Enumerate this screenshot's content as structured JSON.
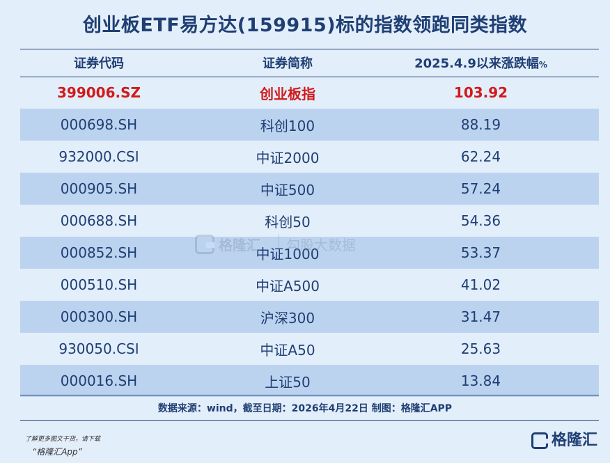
{
  "title": "创业板ETF易方达(159915)标的指数领跑同类指数",
  "headers": {
    "code": "证券代码",
    "name": "证券简称",
    "change": "2025.4.9以来涨跌幅",
    "change_unit": "%"
  },
  "rows": [
    {
      "code": "399006.SZ",
      "name": "创业板指",
      "value": "103.92"
    },
    {
      "code": "000698.SH",
      "name": "科创100",
      "value": "88.19"
    },
    {
      "code": "932000.CSI",
      "name": "中证2000",
      "value": "62.24"
    },
    {
      "code": "000905.SH",
      "name": "中证500",
      "value": "57.24"
    },
    {
      "code": "000688.SH",
      "name": "科创50",
      "value": "54.36"
    },
    {
      "code": "000852.SH",
      "name": "中证1000",
      "value": "53.37"
    },
    {
      "code": "000510.SH",
      "name": "中证A500",
      "value": "41.02"
    },
    {
      "code": "000300.SH",
      "name": "沪深300",
      "value": "31.47"
    },
    {
      "code": "930050.CSI",
      "name": "中证A50",
      "value": "25.63"
    },
    {
      "code": "000016.SH",
      "name": "上证50",
      "value": "13.84"
    }
  ],
  "source": "数据来源：wind，截至日期：2026年4月22日 制图：格隆汇APP",
  "watermark": {
    "brand": "格隆汇",
    "sub": "勾股大数据"
  },
  "footer": {
    "note1": "了解更多图文干货，请下载",
    "note2": "“格隆汇App”",
    "brand": "格隆汇"
  },
  "colors": {
    "primary": "#1f3f73",
    "highlight": "#d11a1a",
    "stripe": "#bcd3f0",
    "background": "#e3eefb"
  }
}
